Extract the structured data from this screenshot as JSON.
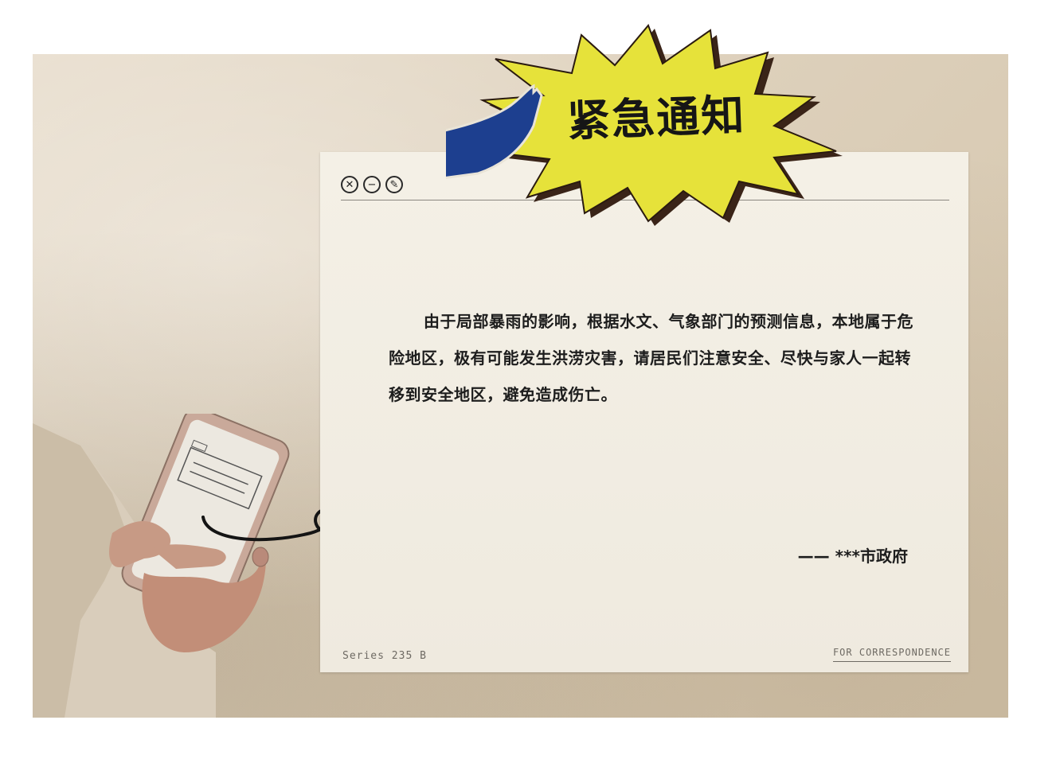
{
  "banner": {
    "title": "紧急通知"
  },
  "window": {
    "close_symbol": "✕",
    "minimize_symbol": "−",
    "edit_symbol": "✎"
  },
  "notice": {
    "message": "由于局部暴雨的影响，根据水文、气象部门的预测信息，本地属于危险地区，极有可能发生洪涝灾害，请居民们注意安全、尽快与家人一起转移到安全地区，避免造成伤亡。",
    "signature": "—— ***市政府"
  },
  "footer": {
    "series": "Series 235 B",
    "correspondence": "FOR CORRESPONDENCE"
  },
  "colors": {
    "burst_yellow": "#e6e23a",
    "burst_shadow": "#3a2418",
    "ribbon_blue": "#1d3f8f",
    "paper": "#e3d7c3",
    "card": "#f2eee4"
  },
  "icons": [
    "close-icon",
    "minimize-icon",
    "edit-icon",
    "arrow-icon",
    "phone-illustration"
  ]
}
